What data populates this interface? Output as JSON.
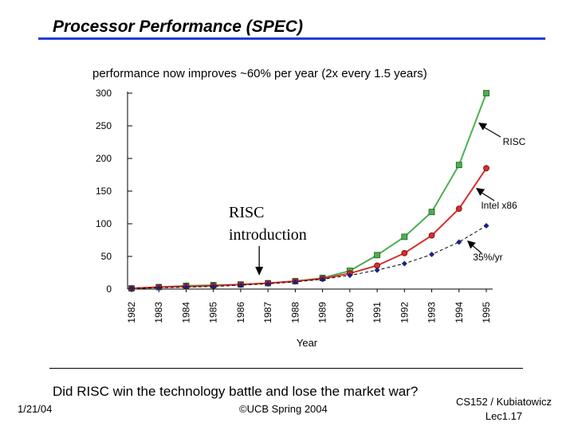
{
  "slide": {
    "title": "Processor Performance (SPEC)",
    "question": "Did RISC win the technology battle and lose the market war?",
    "footer_date": "1/21/04",
    "footer_copyright": "©UCB Spring 2004",
    "footer_course_line1": "CS152 / Kubiatowicz",
    "footer_course_line2": "Lec1.17"
  },
  "chart_data": {
    "type": "line",
    "title": "performance now improves ~60% per year (2x every 1.5 years)",
    "xlabel": "Year",
    "ylabel": "",
    "categories": [
      "1982",
      "1983",
      "1984",
      "1985",
      "1986",
      "1987",
      "1988",
      "1989",
      "1990",
      "1991",
      "1992",
      "1993",
      "1994",
      "1995"
    ],
    "yticks": [
      0,
      50,
      100,
      150,
      200,
      250,
      300
    ],
    "ylim": [
      0,
      300
    ],
    "grid": false,
    "series": [
      {
        "name": "RISC",
        "color": "#4caf50",
        "marker": "square",
        "dashed": false,
        "values": [
          1,
          3,
          5,
          6,
          7,
          9,
          12,
          17,
          28,
          52,
          80,
          118,
          190,
          300
        ]
      },
      {
        "name": "Intel x86",
        "color": "#d32f2f",
        "marker": "circle",
        "dashed": false,
        "values": [
          1,
          3,
          4,
          5,
          7,
          9,
          12,
          16,
          24,
          36,
          55,
          82,
          123,
          185
        ]
      },
      {
        "name": "35%/yr",
        "color": "#1a237e",
        "marker": "diamond",
        "dashed": true,
        "values": [
          1,
          2,
          3,
          4,
          6,
          8,
          11,
          15,
          21,
          29,
          39,
          53,
          72,
          97
        ]
      }
    ],
    "annotations": [
      {
        "text": "RISC introduction",
        "target_category": "1987"
      }
    ]
  }
}
